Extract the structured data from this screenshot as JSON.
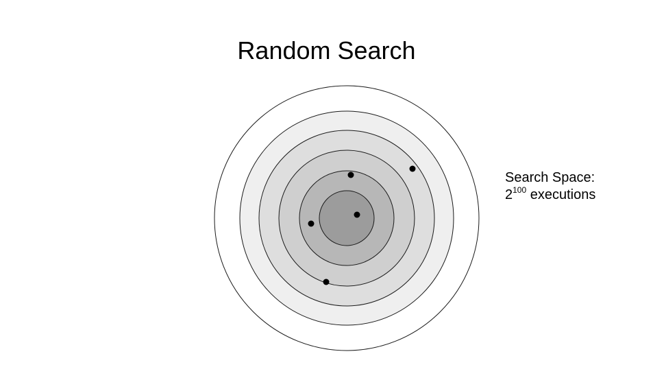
{
  "title": "Random Search",
  "caption": {
    "label": "Search Space:",
    "base": "2",
    "exponent": "100",
    "unit": "executions"
  },
  "rings": [
    {
      "fill": "#ffffff"
    },
    {
      "fill": "#efefef"
    },
    {
      "fill": "#dedede"
    },
    {
      "fill": "#cfcfcf"
    },
    {
      "fill": "#b7b7b7"
    },
    {
      "fill": "#9c9c9c"
    }
  ],
  "sample_points": 5,
  "colors": {
    "stroke": "#1a1a1a",
    "point": "#000000"
  }
}
